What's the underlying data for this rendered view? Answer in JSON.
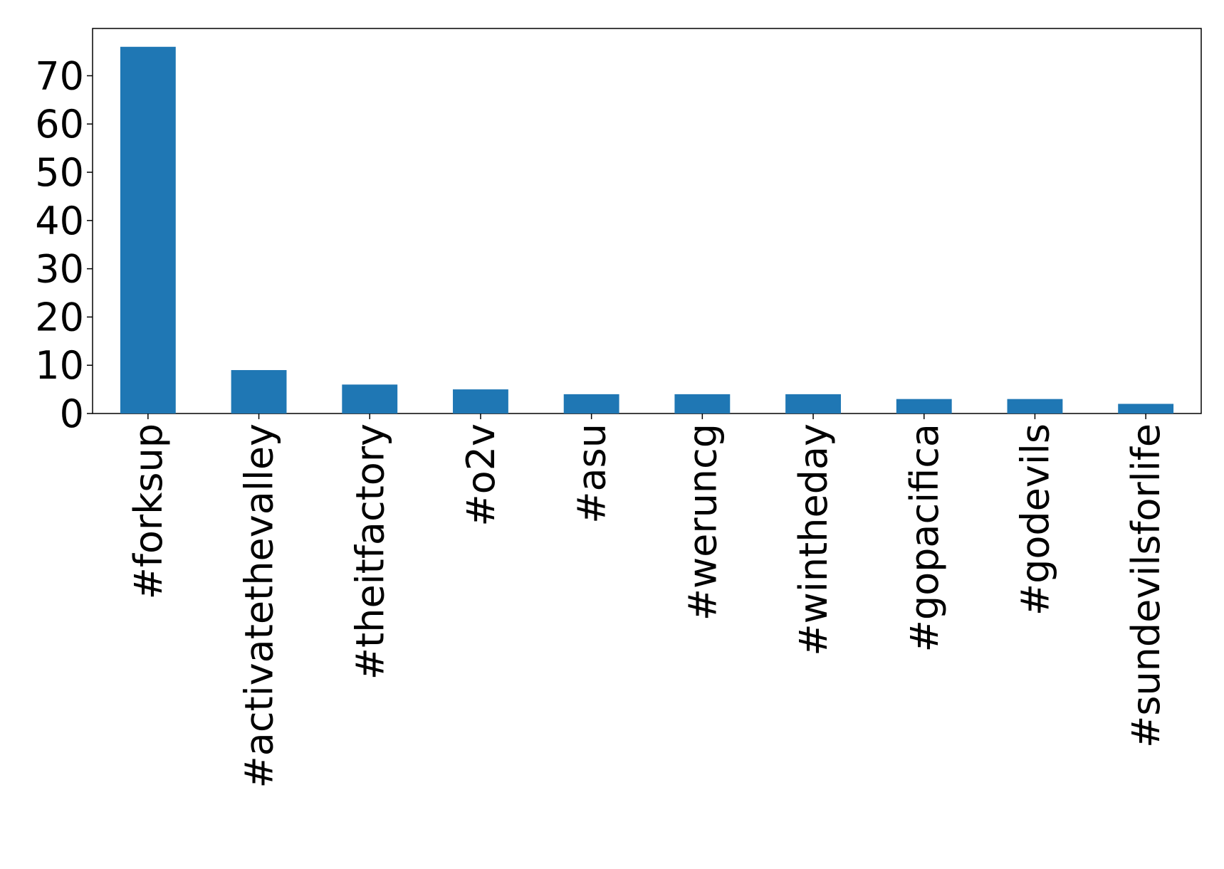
{
  "chart_data": {
    "type": "bar",
    "categories": [
      "#forksup",
      "#activatethevalley",
      "#theitfactory",
      "#o2v",
      "#asu",
      "#weruncg",
      "#wintheday",
      "#gopacifica",
      "#godevils",
      "#sundevilsforlife"
    ],
    "values": [
      76,
      9,
      6,
      5,
      4,
      4,
      4,
      3,
      3,
      2
    ],
    "color": "#1f77b4",
    "ylim": [
      0,
      79.8
    ],
    "yticks": [
      0,
      10,
      20,
      30,
      40,
      50,
      60,
      70
    ],
    "grid": false
  }
}
